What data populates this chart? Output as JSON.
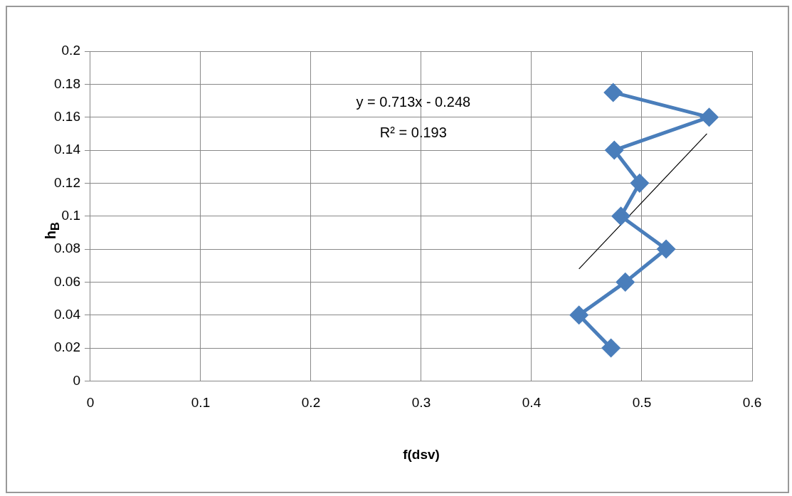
{
  "chart_data": {
    "type": "line",
    "xlabel": "f(dsv)",
    "ylabel": "h$_{B}$",
    "annotations": [
      "y = 0.713x - 0.248",
      "R² = 0.193"
    ],
    "series": [
      {
        "color": "#4a7ebb",
        "marker": "diamond",
        "x": [
          0.472,
          0.443,
          0.485,
          0.522,
          0.481,
          0.498,
          0.475,
          0.561,
          0.474
        ],
        "values": [
          0.02,
          0.04,
          0.06,
          0.08,
          0.1,
          0.12,
          0.14,
          0.16,
          0.175
        ]
      },
      {
        "color": "#000000",
        "marker": "none",
        "x": [
          0.443,
          0.559
        ],
        "values": [
          0.068,
          0.15
        ]
      }
    ],
    "xlim": [
      0,
      0.6
    ],
    "xticks": [
      0,
      0.1,
      0.2,
      0.3,
      0.4,
      0.5,
      0.6
    ],
    "ylim": [
      0,
      0.2
    ],
    "yticks": [
      0,
      0.02,
      0.04,
      0.06,
      0.08,
      0.1,
      0.12,
      0.14,
      0.16,
      0.18,
      0.2
    ],
    "grid": true,
    "legend": false
  }
}
